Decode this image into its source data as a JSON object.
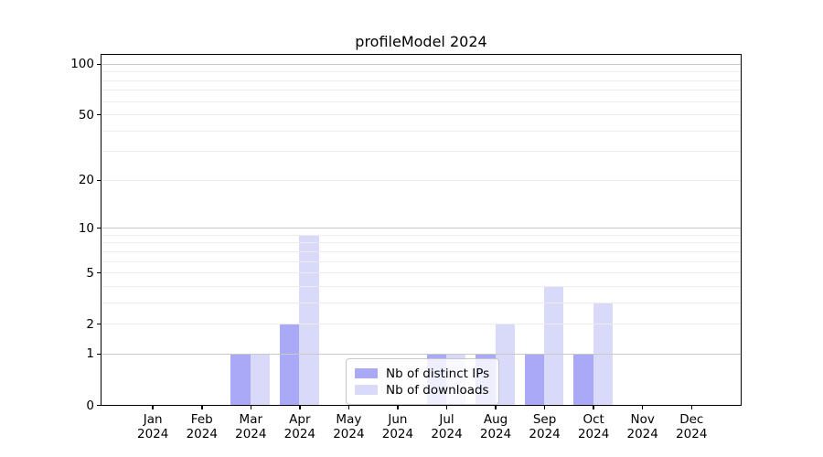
{
  "chart_data": {
    "type": "bar",
    "title": "profileModel 2024",
    "categories": [
      "Jan",
      "Feb",
      "Mar",
      "Apr",
      "May",
      "Jun",
      "Jul",
      "Aug",
      "Sep",
      "Oct",
      "Nov",
      "Dec"
    ],
    "year": "2024",
    "series": [
      {
        "name": "Nb of distinct IPs",
        "color": "#a9a9f8",
        "values": [
          0,
          0,
          1,
          2,
          0,
          0,
          1,
          1,
          1,
          1,
          0,
          0
        ]
      },
      {
        "name": "Nb of downloads",
        "color": "#d9d9fa",
        "values": [
          0,
          0,
          1,
          9,
          0,
          0,
          1,
          2,
          4,
          3,
          0,
          0
        ]
      }
    ],
    "y_scale": "log1p",
    "yticks": [
      0,
      1,
      2,
      5,
      10,
      20,
      50,
      100
    ],
    "ylim": [
      0,
      115
    ],
    "grid": {
      "major_values": [
        1,
        10,
        100
      ],
      "minor_values": [
        2,
        3,
        4,
        5,
        6,
        7,
        8,
        9,
        20,
        30,
        40,
        50,
        60,
        70,
        80,
        90
      ],
      "major_color": "#c9c9c9",
      "minor_color": "#ececec"
    },
    "legend_position": "lower center",
    "axis_color": "#000000",
    "background_color": "#ffffff"
  }
}
